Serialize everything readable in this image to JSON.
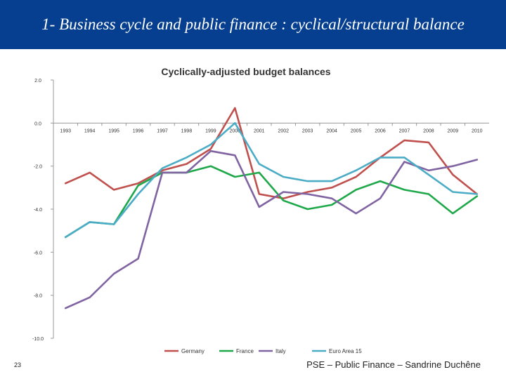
{
  "slide": {
    "title": "1- Business cycle and public finance : cyclical/structural balance",
    "page_number": "23",
    "footer": "PSE – Public Finance – Sandrine Duchêne"
  },
  "chart_data": {
    "type": "line",
    "title": "Cyclically-adjusted budget balances",
    "x": [
      "1993",
      "1994",
      "1995",
      "1996",
      "1997",
      "1998",
      "1999",
      "2000",
      "2001",
      "2002",
      "2003",
      "2004",
      "2005",
      "2006",
      "2007",
      "2008",
      "2009",
      "2010"
    ],
    "ylim": [
      -10,
      2
    ],
    "yticks": [
      "2.0",
      "0.0",
      "-2.0",
      "-4.0",
      "-6.0",
      "-8.0",
      "-10.0"
    ],
    "ytick_values": [
      2,
      0,
      -2,
      -4,
      -6,
      -8,
      -10
    ],
    "xtick_labels": [
      "1993",
      "1994",
      "1995",
      "1996",
      "1997",
      "1998",
      "1999",
      "2000",
      "2001",
      "2002",
      "2003",
      "2004",
      "2005",
      "2006",
      "2007",
      "2008",
      "2009",
      "2010"
    ],
    "grid": false,
    "legend_position": "bottom",
    "series": [
      {
        "name": "Germany",
        "color": "#c0504d",
        "values": [
          -2.8,
          -2.3,
          -3.1,
          -2.8,
          -2.2,
          -1.9,
          -1.2,
          0.7,
          -3.3,
          -3.5,
          -3.2,
          -3.0,
          -2.5,
          -1.6,
          -0.8,
          -0.9,
          -2.4,
          -3.3
        ]
      },
      {
        "name": "France",
        "color": "#1fa84a",
        "values": [
          -5.3,
          -4.6,
          -4.7,
          -2.9,
          -2.3,
          -2.3,
          -2.0,
          -2.5,
          -2.3,
          -3.6,
          -4.0,
          -3.8,
          -3.1,
          -2.7,
          -3.1,
          -3.3,
          -4.2,
          -3.4
        ]
      },
      {
        "name": "Italy",
        "color": "#8064a2",
        "values": [
          -8.6,
          -8.1,
          -7.0,
          -6.3,
          -2.3,
          -2.3,
          -1.3,
          -1.5,
          -3.9,
          -3.2,
          -3.3,
          -3.5,
          -4.2,
          -3.5,
          -1.8,
          -2.2,
          -2.0,
          -1.7
        ]
      },
      {
        "name": "Euro Area 15",
        "color": "#4bacc6",
        "values": [
          -5.3,
          -4.6,
          -4.7,
          -3.3,
          -2.1,
          -1.6,
          -1.0,
          0.0,
          -1.9,
          -2.5,
          -2.7,
          -2.7,
          -2.2,
          -1.6,
          -1.6,
          -2.4,
          -3.2,
          -3.3
        ]
      }
    ]
  }
}
